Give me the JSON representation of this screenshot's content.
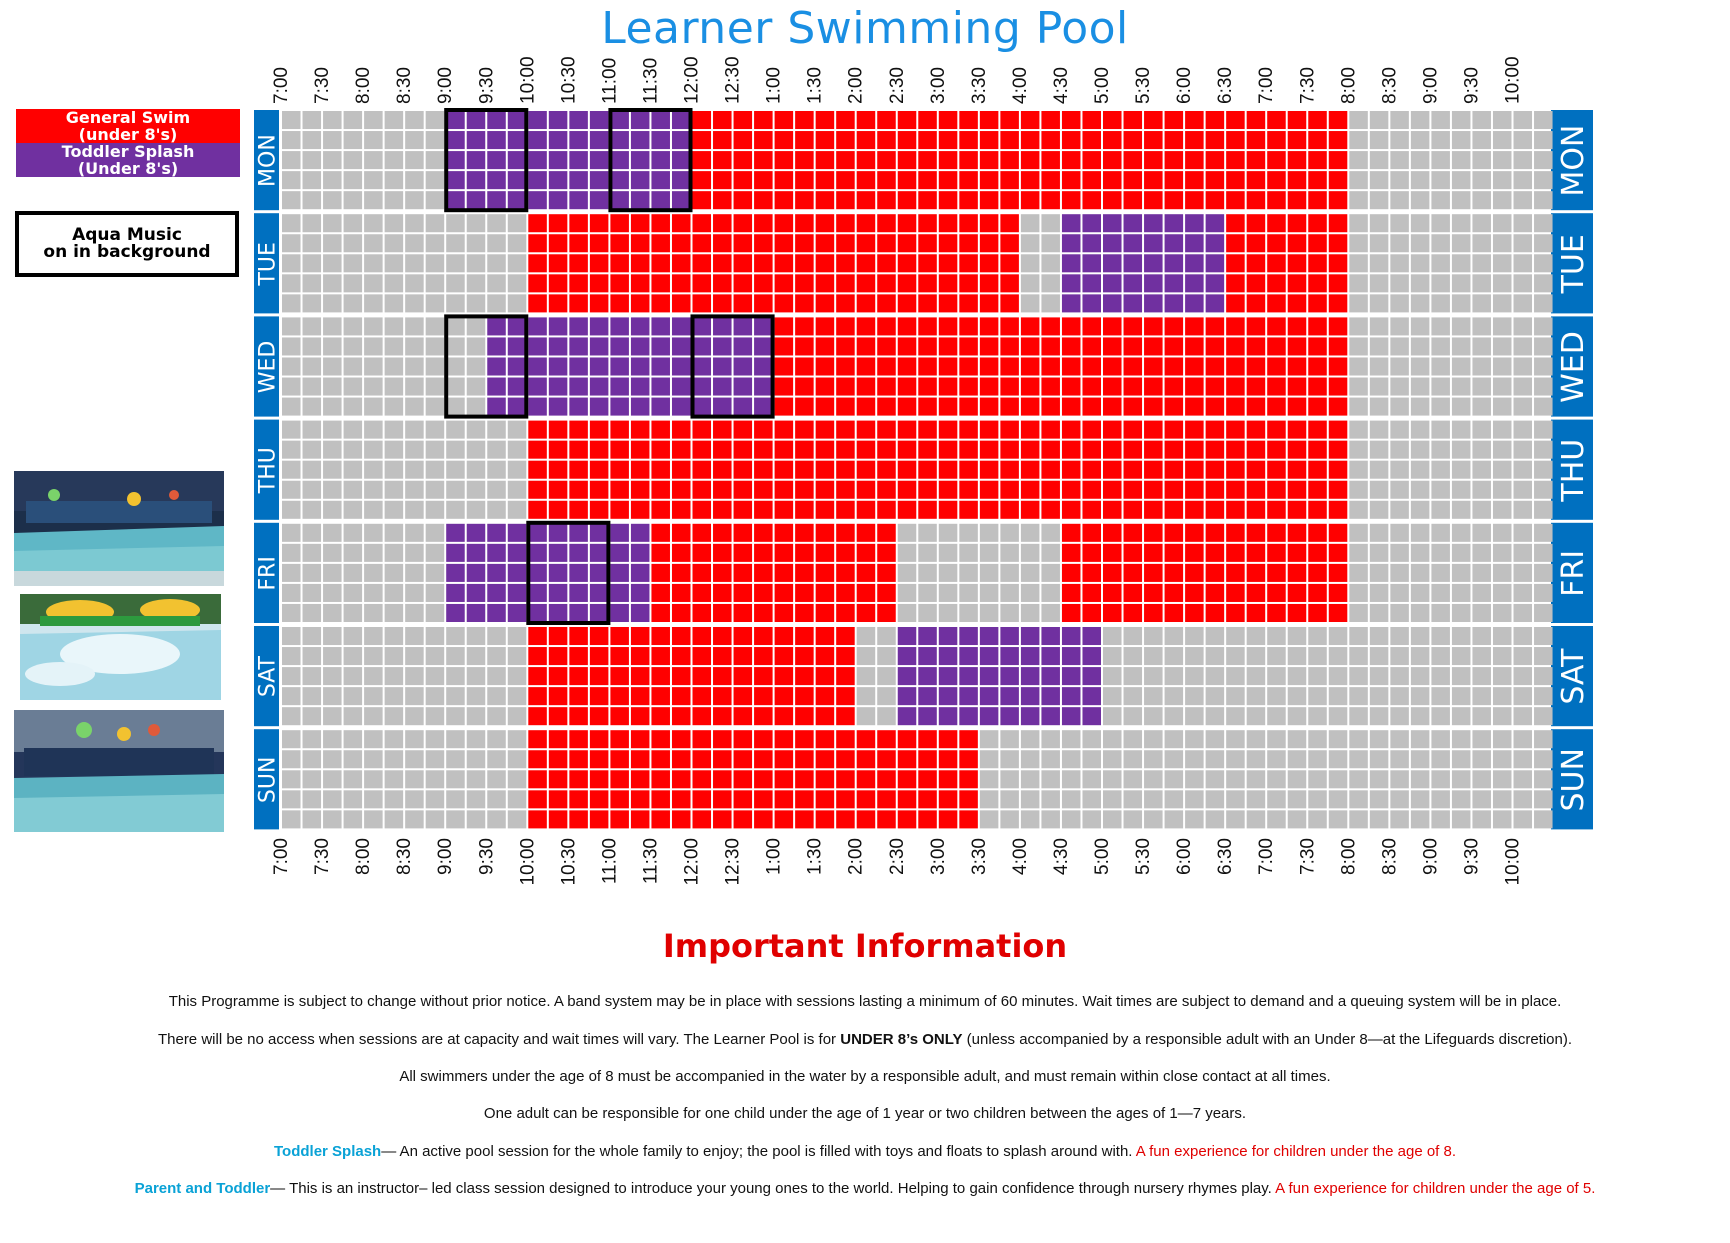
{
  "title": "Learner Swimming Pool",
  "legend": {
    "general_line1": "General Swim",
    "general_line2": "(under 8's)",
    "toddler_line1": "Toddler Splash",
    "toddler_line2": "(Under 8's)",
    "aqua_line1": "Aqua Music",
    "aqua_line2": "on in background"
  },
  "colors": {
    "general_swim": "#ff0000",
    "toddler_splash": "#7030a0",
    "closed": "#c0c0c0",
    "day_label_bg": "#0070c0",
    "title": "#1a8fe3"
  },
  "photos": [
    {
      "icon": "pool-photo-icon"
    },
    {
      "icon": "pool-slide-photo-icon"
    },
    {
      "icon": "pool-photo-icon"
    }
  ],
  "timetable": {
    "times": [
      "7:00",
      "7:30",
      "8:00",
      "8:30",
      "9:00",
      "9:30",
      "10:00",
      "10:30",
      "11:00",
      "11:30",
      "12:00",
      "12:30",
      "1:00",
      "1:30",
      "2:00",
      "2:30",
      "3:00",
      "3:30",
      "4:00",
      "4:30",
      "5:00",
      "5:30",
      "6:00",
      "6:30",
      "7:00",
      "7:30",
      "8:00",
      "8:30",
      "9:00",
      "9:30",
      "10:00"
    ],
    "legend_key": {
      "G": "closed",
      "R": "general_swim",
      "P": "toddler_splash"
    },
    "days": [
      {
        "label": "MON",
        "slots": "GGGGPPPPPPRRRRRRRRRRRRRRRRGGGGG",
        "aqua_music": [
          [
            4,
            6
          ],
          [
            8,
            10
          ]
        ]
      },
      {
        "label": "TUE",
        "slots": "GGGGGGRRRRRRRRRRRRGPPPPRRRGGGGG",
        "aqua_music": []
      },
      {
        "label": "WED",
        "slots": "GGGGGPPPPPPPRRRRRRRRRRRRRRGGGGG",
        "aqua_music": [
          [
            4,
            6
          ],
          [
            10,
            12
          ]
        ]
      },
      {
        "label": "THU",
        "slots": "GGGGGGRRRRRRRRRRRRRRRRRRRRGGGGG",
        "aqua_music": []
      },
      {
        "label": "FRI",
        "slots": "GGGGPPPPPRRRRRRGGGGRRRRRRRGGGGG",
        "aqua_music": [
          [
            6,
            8
          ]
        ]
      },
      {
        "label": "SAT",
        "slots": "GGGGGGRRRRRRRRGPPPPPGGGGGGGGGGG",
        "aqua_music": []
      },
      {
        "label": "SUN",
        "slots": "GGGGGGRRRRRRRRRRRGGGGGGGGGGGGGG",
        "aqua_music": []
      }
    ]
  },
  "info": {
    "heading": "Important Information",
    "line1": "This Programme is subject to change without prior notice. A band system may be in place with sessions lasting a minimum of 60 minutes. Wait times are subject to demand and a queuing system will be in place.",
    "line2_a": "There will be no access when sessions are at capacity and wait times will vary. The Learner Pool is for ",
    "line2_b": "UNDER 8’s ONLY",
    "line2_c": " (unless accompanied by a responsible adult with an Under 8—at the Lifeguards discretion).",
    "line3": "All swimmers under the age of 8 must be accompanied in the water by a responsible adult, and must remain within close contact at all times.",
    "line4": "One adult can be responsible for one child under the age of 1 year or two children between the ages of 1—7 years.",
    "line5_term": "Toddler Splash",
    "line5_body": "— An active pool session for the whole family to enjoy; the pool is filled with toys and floats to splash around with. ",
    "line5_note": "A fun experience for children under the age of 8.",
    "line6_term": "Parent and Toddler",
    "line6_body": "— This is an instructor– led class session designed to introduce your young ones to the world. Helping to gain confidence through nursery rhymes play. ",
    "line6_note": "A fun experience for children under the age of 5."
  }
}
